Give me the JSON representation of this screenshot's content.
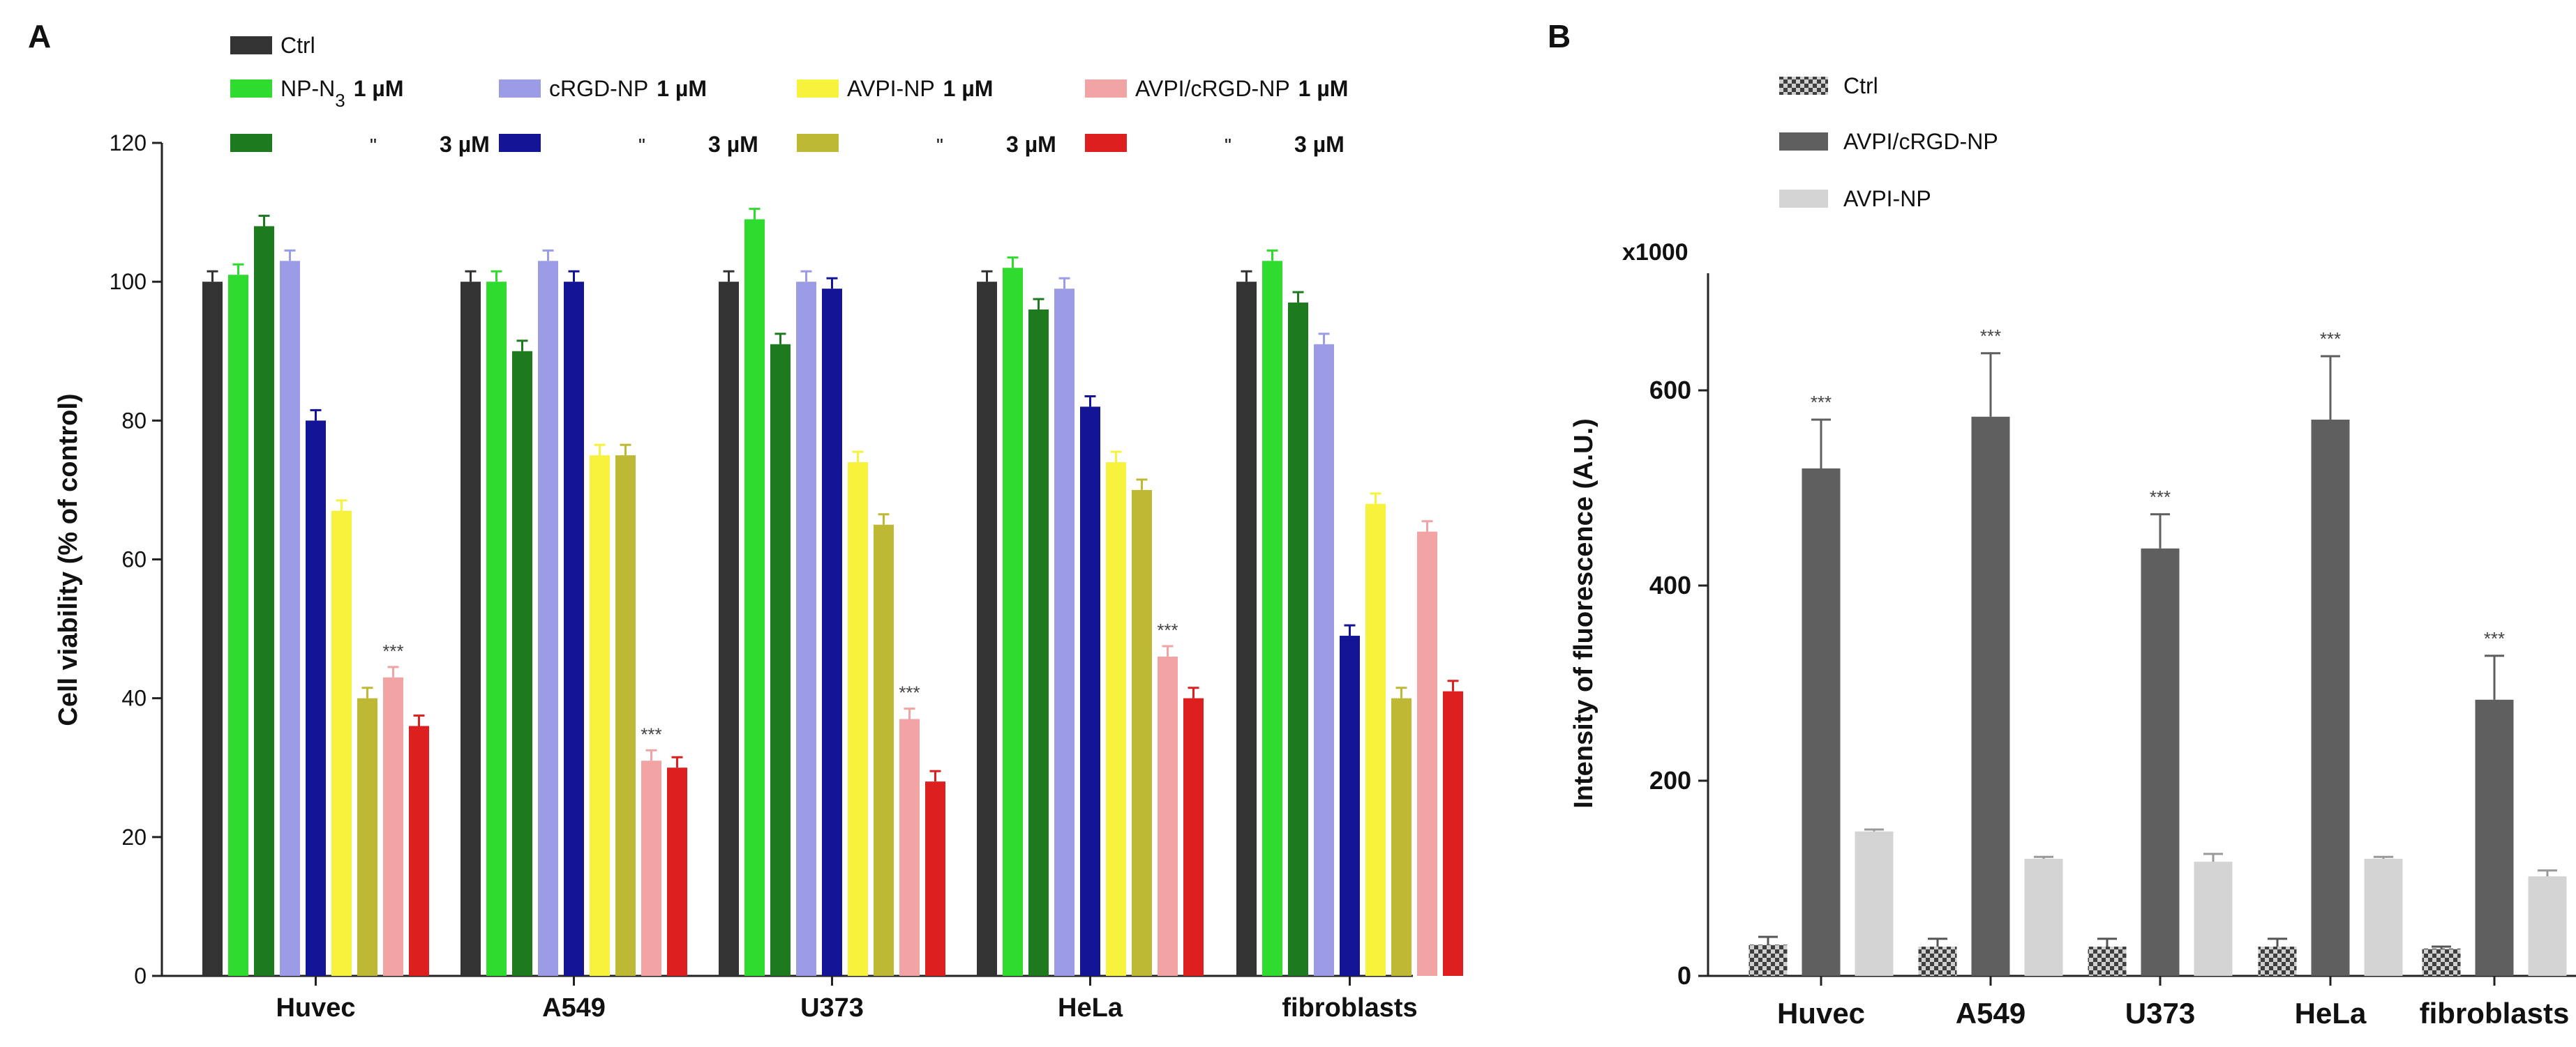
{
  "chart_data": [
    {
      "type": "bar",
      "panel_label": "A",
      "ylabel": "Cell viability (% of control)",
      "ylim": [
        0,
        120
      ],
      "yticks": [
        0,
        20,
        40,
        60,
        80,
        100,
        120
      ],
      "categories": [
        "Huvec",
        "A549",
        "U373",
        "HeLa",
        "fibroblasts"
      ],
      "legend": {
        "ctrl": "Ctrl",
        "groups": [
          {
            "name": "NP-N",
            "subscript": "3",
            "dose1": "1 µM",
            "ditto": "\"",
            "dose3": "3 µM"
          },
          {
            "name": "cRGD-NP",
            "subscript": "",
            "dose1": "1 µM",
            "ditto": "\"",
            "dose3": "3 µM"
          },
          {
            "name": "AVPI-NP",
            "subscript": "",
            "dose1": "1 µM",
            "ditto": "\"",
            "dose3": "3 µM"
          },
          {
            "name": "AVPI/cRGD-NP",
            "subscript": "",
            "dose1": "1 µM",
            "ditto": "\"",
            "dose3": "3 µM"
          }
        ]
      },
      "significance_label": "***",
      "series": [
        {
          "name": "Ctrl",
          "color": "#333333",
          "values": [
            100,
            100,
            100,
            100,
            100
          ],
          "errors": [
            1.5,
            1.5,
            1.5,
            1.5,
            1.5
          ]
        },
        {
          "name": "NP-N3 1 µM",
          "color": "#2edb2e",
          "values": [
            101,
            100,
            109,
            102,
            103
          ],
          "errors": [
            1.5,
            1.5,
            1.5,
            1.5,
            1.5
          ]
        },
        {
          "name": "NP-N3 3 µM",
          "color": "#1e7a1e",
          "values": [
            108,
            90,
            91,
            96,
            97
          ],
          "errors": [
            1.5,
            1.5,
            1.5,
            1.5,
            1.5
          ]
        },
        {
          "name": "cRGD-NP 1 µM",
          "color": "#9b9be6",
          "values": [
            103,
            103,
            100,
            99,
            91
          ],
          "errors": [
            1.5,
            1.5,
            1.5,
            1.5,
            1.5
          ]
        },
        {
          "name": "cRGD-NP 3 µM",
          "color": "#141496",
          "values": [
            80,
            100,
            99,
            82,
            49
          ],
          "errors": [
            1.5,
            1.5,
            1.5,
            1.5,
            1.5
          ]
        },
        {
          "name": "AVPI-NP 1 µM",
          "color": "#f7f23b",
          "values": [
            67,
            75,
            74,
            74,
            68
          ],
          "errors": [
            1.5,
            1.5,
            1.5,
            1.5,
            1.5
          ]
        },
        {
          "name": "AVPI-NP 3 µM",
          "color": "#bdb935",
          "values": [
            40,
            75,
            65,
            70,
            40
          ],
          "errors": [
            1.5,
            1.5,
            1.5,
            1.5,
            1.5
          ]
        },
        {
          "name": "AVPI/cRGD-NP 1 µM",
          "color": "#f2a3a3",
          "values": [
            43,
            31,
            37,
            46,
            64
          ],
          "errors": [
            1.5,
            1.5,
            1.5,
            1.5,
            1.5
          ]
        },
        {
          "name": "AVPI/cRGD-NP 3 µM",
          "color": "#dd1f1f",
          "values": [
            36,
            30,
            28,
            40,
            41
          ],
          "errors": [
            1.5,
            1.5,
            1.5,
            1.5,
            1.5
          ]
        }
      ],
      "significance": [
        {
          "series": 7,
          "category": 0
        },
        {
          "series": 7,
          "category": 1
        },
        {
          "series": 7,
          "category": 2
        },
        {
          "series": 7,
          "category": 3
        }
      ]
    },
    {
      "type": "bar",
      "panel_label": "B",
      "ylabel": "Intensity of fluorescence (A.U.)",
      "y_multiplier": "x1000",
      "ylim": [
        0,
        720
      ],
      "yticks": [
        0,
        200,
        400,
        600
      ],
      "categories": [
        "Huvec",
        "A549",
        "U373",
        "HeLa",
        "fibroblasts"
      ],
      "significance_label": "***",
      "legend_position": "top-left",
      "series": [
        {
          "name": "Ctrl",
          "color": "#555555",
          "pattern": "checker",
          "values": [
            32,
            30,
            30,
            30,
            28
          ],
          "errors": [
            8,
            8,
            8,
            8,
            2
          ]
        },
        {
          "name": "AVPI/cRGD-NP",
          "color": "#5f5f5f",
          "values": [
            520,
            573,
            438,
            570,
            283
          ],
          "errors": [
            50,
            65,
            35,
            65,
            45
          ]
        },
        {
          "name": "AVPI-NP",
          "color": "#d4d4d4",
          "values": [
            148,
            120,
            117,
            120,
            102
          ],
          "errors": [
            2,
            2,
            8,
            2,
            6
          ]
        }
      ],
      "significance": [
        {
          "series": 1,
          "category": 0
        },
        {
          "series": 1,
          "category": 1
        },
        {
          "series": 1,
          "category": 2
        },
        {
          "series": 1,
          "category": 3
        },
        {
          "series": 1,
          "category": 4
        }
      ]
    }
  ]
}
